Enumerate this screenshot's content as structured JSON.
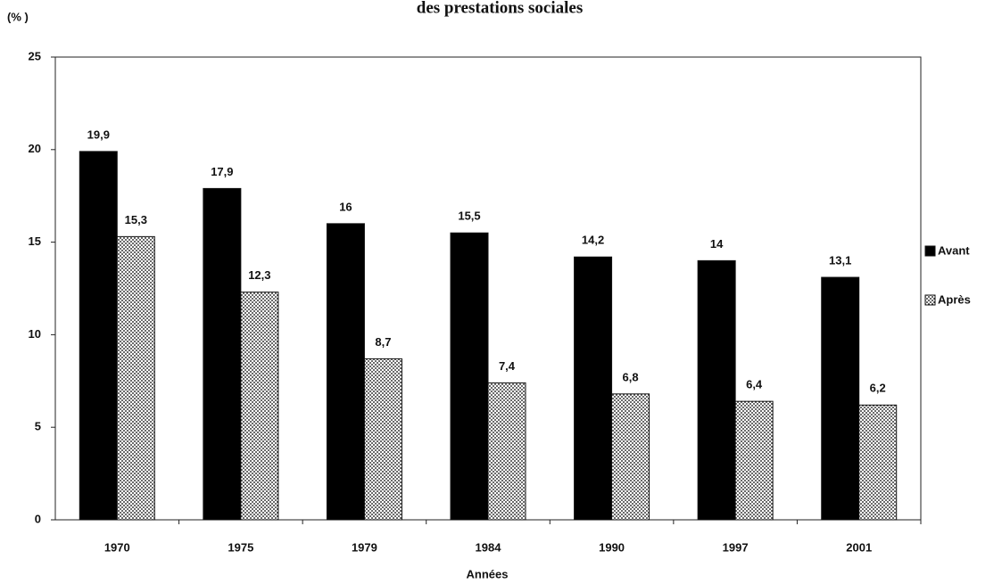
{
  "chart_data": {
    "type": "bar",
    "title": "des prestations sociales",
    "y_label": "(% )",
    "x_label": "Années",
    "categories": [
      "1970",
      "1975",
      "1979",
      "1984",
      "1990",
      "1997",
      "2001"
    ],
    "series": [
      {
        "name": "Avant",
        "color": "#000000",
        "pattern": "solid",
        "values": [
          19.9,
          17.9,
          16,
          15.5,
          14.2,
          14,
          13.1
        ],
        "value_labels": [
          "19,9",
          "17,9",
          "16",
          "15,5",
          "14,2",
          "14",
          "13,1"
        ]
      },
      {
        "name": "Après",
        "color": "#555555",
        "pattern": "dotted",
        "values": [
          15.3,
          12.3,
          8.7,
          7.4,
          6.8,
          6.4,
          6.2
        ],
        "value_labels": [
          "15,3",
          "12,3",
          "8,7",
          "7,4",
          "6,8",
          "6,4",
          "6,2"
        ]
      }
    ],
    "ylim": [
      0,
      25
    ],
    "yticks": [
      0,
      5,
      10,
      15,
      20,
      25
    ],
    "legend": "right"
  }
}
